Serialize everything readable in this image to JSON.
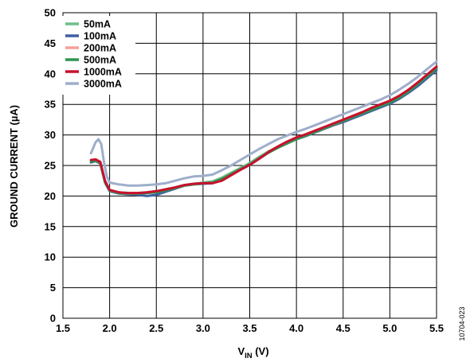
{
  "chart_data": {
    "type": "line",
    "xlabel_main": "V",
    "xlabel_sub": "IN",
    "xlabel_unit": " (V)",
    "ylabel": "GROUND CURRENT (µA)",
    "xlim": [
      1.5,
      5.5
    ],
    "ylim": [
      0,
      50
    ],
    "x_ticks": [
      "1.5",
      "2.0",
      "2.5",
      "3.0",
      "3.5",
      "4.0",
      "4.5",
      "5.0",
      "5.5"
    ],
    "y_ticks": [
      "0",
      "5",
      "10",
      "15",
      "20",
      "25",
      "30",
      "35",
      "40",
      "45",
      "50"
    ],
    "grid": true,
    "legend_position": "top-left",
    "figure_id": "10704-023",
    "series": [
      {
        "name": "50mA",
        "color": "#6dbf8a",
        "points": [
          [
            1.8,
            25.8
          ],
          [
            1.85,
            25.9
          ],
          [
            1.9,
            25.5
          ],
          [
            1.95,
            22.5
          ],
          [
            2.0,
            21.0
          ],
          [
            2.1,
            20.6
          ],
          [
            2.2,
            20.5
          ],
          [
            2.3,
            20.5
          ],
          [
            2.4,
            20.6
          ],
          [
            2.5,
            20.8
          ],
          [
            2.6,
            21.1
          ],
          [
            2.7,
            21.4
          ],
          [
            2.8,
            21.8
          ],
          [
            2.9,
            22.0
          ],
          [
            3.0,
            22.2
          ],
          [
            3.1,
            22.4
          ],
          [
            3.2,
            23.0
          ],
          [
            3.3,
            23.8
          ],
          [
            3.4,
            24.6
          ],
          [
            3.5,
            25.4
          ],
          [
            3.6,
            26.4
          ],
          [
            3.7,
            27.3
          ],
          [
            3.8,
            28.0
          ],
          [
            3.9,
            28.8
          ],
          [
            4.0,
            29.5
          ],
          [
            4.1,
            30.0
          ],
          [
            4.2,
            30.6
          ],
          [
            4.3,
            31.2
          ],
          [
            4.4,
            31.8
          ],
          [
            4.5,
            32.4
          ],
          [
            4.6,
            33.0
          ],
          [
            4.7,
            33.6
          ],
          [
            4.8,
            34.3
          ],
          [
            4.9,
            34.9
          ],
          [
            5.0,
            35.5
          ],
          [
            5.1,
            36.3
          ],
          [
            5.2,
            37.3
          ],
          [
            5.3,
            38.5
          ],
          [
            5.4,
            39.8
          ],
          [
            5.5,
            41.0
          ]
        ]
      },
      {
        "name": "100mA",
        "color": "#3f5fa3",
        "points": [
          [
            1.8,
            25.5
          ],
          [
            1.85,
            25.7
          ],
          [
            1.9,
            25.3
          ],
          [
            1.95,
            22.2
          ],
          [
            2.0,
            20.8
          ],
          [
            2.1,
            20.4
          ],
          [
            2.2,
            20.3
          ],
          [
            2.3,
            20.2
          ],
          [
            2.4,
            20.0
          ],
          [
            2.5,
            20.2
          ],
          [
            2.6,
            20.7
          ],
          [
            2.7,
            21.2
          ],
          [
            2.8,
            21.7
          ],
          [
            2.9,
            21.9
          ],
          [
            3.0,
            22.0
          ],
          [
            3.1,
            22.1
          ],
          [
            3.2,
            22.7
          ],
          [
            3.3,
            23.5
          ],
          [
            3.4,
            24.3
          ],
          [
            3.5,
            25.1
          ],
          [
            3.6,
            26.1
          ],
          [
            3.7,
            27.1
          ],
          [
            3.8,
            27.9
          ],
          [
            3.9,
            28.7
          ],
          [
            4.0,
            29.3
          ],
          [
            4.1,
            29.8
          ],
          [
            4.2,
            30.4
          ],
          [
            4.3,
            31.0
          ],
          [
            4.4,
            31.6
          ],
          [
            4.5,
            32.1
          ],
          [
            4.6,
            32.7
          ],
          [
            4.7,
            33.3
          ],
          [
            4.8,
            33.9
          ],
          [
            4.9,
            34.5
          ],
          [
            5.0,
            35.1
          ],
          [
            5.1,
            35.9
          ],
          [
            5.2,
            36.9
          ],
          [
            5.3,
            38.0
          ],
          [
            5.4,
            39.3
          ],
          [
            5.5,
            40.6
          ]
        ]
      },
      {
        "name": "200mA",
        "color": "#f4a199",
        "points": [
          [
            1.8,
            25.7
          ],
          [
            1.85,
            25.8
          ],
          [
            1.9,
            25.4
          ],
          [
            1.95,
            22.4
          ],
          [
            2.0,
            20.9
          ],
          [
            2.1,
            20.5
          ],
          [
            2.2,
            20.4
          ],
          [
            2.3,
            20.4
          ],
          [
            2.4,
            20.5
          ],
          [
            2.5,
            20.7
          ],
          [
            2.6,
            21.0
          ],
          [
            2.7,
            21.3
          ],
          [
            2.8,
            21.7
          ],
          [
            2.9,
            21.9
          ],
          [
            3.0,
            22.1
          ],
          [
            3.1,
            22.2
          ],
          [
            3.2,
            22.8
          ],
          [
            3.3,
            23.6
          ],
          [
            3.4,
            24.4
          ],
          [
            3.5,
            25.2
          ],
          [
            3.6,
            26.2
          ],
          [
            3.7,
            27.1
          ],
          [
            3.8,
            27.9
          ],
          [
            3.9,
            28.7
          ],
          [
            4.0,
            29.4
          ],
          [
            4.1,
            29.9
          ],
          [
            4.2,
            30.5
          ],
          [
            4.3,
            31.1
          ],
          [
            4.4,
            31.7
          ],
          [
            4.5,
            32.3
          ],
          [
            4.6,
            32.9
          ],
          [
            4.7,
            33.5
          ],
          [
            4.8,
            34.2
          ],
          [
            4.9,
            34.8
          ],
          [
            5.0,
            35.4
          ],
          [
            5.1,
            36.2
          ],
          [
            5.2,
            37.2
          ],
          [
            5.3,
            38.4
          ],
          [
            5.4,
            39.7
          ],
          [
            5.5,
            41.0
          ]
        ]
      },
      {
        "name": "500mA",
        "color": "#2e9550",
        "points": [
          [
            1.8,
            25.6
          ],
          [
            1.85,
            25.8
          ],
          [
            1.9,
            25.4
          ],
          [
            1.95,
            22.3
          ],
          [
            2.0,
            20.9
          ],
          [
            2.1,
            20.5
          ],
          [
            2.2,
            20.4
          ],
          [
            2.3,
            20.4
          ],
          [
            2.4,
            20.5
          ],
          [
            2.5,
            20.6
          ],
          [
            2.6,
            20.9
          ],
          [
            2.7,
            21.3
          ],
          [
            2.8,
            21.7
          ],
          [
            2.9,
            21.9
          ],
          [
            3.0,
            22.1
          ],
          [
            3.1,
            22.2
          ],
          [
            3.2,
            22.8
          ],
          [
            3.3,
            23.6
          ],
          [
            3.4,
            24.4
          ],
          [
            3.5,
            25.2
          ],
          [
            3.6,
            26.2
          ],
          [
            3.7,
            27.1
          ],
          [
            3.8,
            27.9
          ],
          [
            3.9,
            28.6
          ],
          [
            4.0,
            29.3
          ],
          [
            4.1,
            29.9
          ],
          [
            4.2,
            30.5
          ],
          [
            4.3,
            31.1
          ],
          [
            4.4,
            31.7
          ],
          [
            4.5,
            32.3
          ],
          [
            4.6,
            32.9
          ],
          [
            4.7,
            33.5
          ],
          [
            4.8,
            34.1
          ],
          [
            4.9,
            34.7
          ],
          [
            5.0,
            35.3
          ],
          [
            5.1,
            36.1
          ],
          [
            5.2,
            37.1
          ],
          [
            5.3,
            38.3
          ],
          [
            5.4,
            39.6
          ],
          [
            5.5,
            40.9
          ]
        ]
      },
      {
        "name": "1000mA",
        "color": "#c8102e",
        "points": [
          [
            1.8,
            25.9
          ],
          [
            1.85,
            26.0
          ],
          [
            1.9,
            25.6
          ],
          [
            1.95,
            22.5
          ],
          [
            2.0,
            21.0
          ],
          [
            2.1,
            20.6
          ],
          [
            2.2,
            20.5
          ],
          [
            2.3,
            20.5
          ],
          [
            2.4,
            20.6
          ],
          [
            2.5,
            20.8
          ],
          [
            2.6,
            21.1
          ],
          [
            2.7,
            21.4
          ],
          [
            2.8,
            21.8
          ],
          [
            2.9,
            22.0
          ],
          [
            3.0,
            22.1
          ],
          [
            3.1,
            22.1
          ],
          [
            3.2,
            22.5
          ],
          [
            3.3,
            23.4
          ],
          [
            3.4,
            24.3
          ],
          [
            3.5,
            25.1
          ],
          [
            3.6,
            26.1
          ],
          [
            3.7,
            27.2
          ],
          [
            3.8,
            28.1
          ],
          [
            3.9,
            28.9
          ],
          [
            4.0,
            29.6
          ],
          [
            4.1,
            30.1
          ],
          [
            4.2,
            30.7
          ],
          [
            4.3,
            31.3
          ],
          [
            4.4,
            31.9
          ],
          [
            4.5,
            32.5
          ],
          [
            4.6,
            33.1
          ],
          [
            4.7,
            33.7
          ],
          [
            4.8,
            34.4
          ],
          [
            4.9,
            35.0
          ],
          [
            5.0,
            35.6
          ],
          [
            5.1,
            36.4
          ],
          [
            5.2,
            37.4
          ],
          [
            5.3,
            38.6
          ],
          [
            5.4,
            39.9
          ],
          [
            5.5,
            41.2
          ]
        ]
      },
      {
        "name": "3000mA",
        "color": "#9eaecb",
        "points": [
          [
            1.8,
            27.0
          ],
          [
            1.85,
            28.8
          ],
          [
            1.88,
            29.3
          ],
          [
            1.91,
            28.5
          ],
          [
            1.94,
            25.5
          ],
          [
            1.97,
            23.2
          ],
          [
            2.0,
            22.2
          ],
          [
            2.1,
            21.9
          ],
          [
            2.2,
            21.7
          ],
          [
            2.3,
            21.7
          ],
          [
            2.4,
            21.8
          ],
          [
            2.5,
            21.9
          ],
          [
            2.6,
            22.1
          ],
          [
            2.7,
            22.5
          ],
          [
            2.8,
            22.9
          ],
          [
            2.9,
            23.2
          ],
          [
            3.0,
            23.3
          ],
          [
            3.1,
            23.5
          ],
          [
            3.2,
            24.2
          ],
          [
            3.3,
            25.0
          ],
          [
            3.4,
            25.9
          ],
          [
            3.5,
            26.8
          ],
          [
            3.6,
            27.7
          ],
          [
            3.7,
            28.5
          ],
          [
            3.8,
            29.3
          ],
          [
            3.9,
            29.9
          ],
          [
            4.0,
            30.5
          ],
          [
            4.1,
            31.0
          ],
          [
            4.2,
            31.6
          ],
          [
            4.3,
            32.2
          ],
          [
            4.4,
            32.8
          ],
          [
            4.5,
            33.4
          ],
          [
            4.6,
            34.0
          ],
          [
            4.7,
            34.6
          ],
          [
            4.8,
            35.2
          ],
          [
            4.9,
            35.8
          ],
          [
            5.0,
            36.5
          ],
          [
            5.1,
            37.4
          ],
          [
            5.2,
            38.4
          ],
          [
            5.3,
            39.5
          ],
          [
            5.4,
            40.8
          ],
          [
            5.5,
            42.0
          ]
        ]
      }
    ]
  }
}
